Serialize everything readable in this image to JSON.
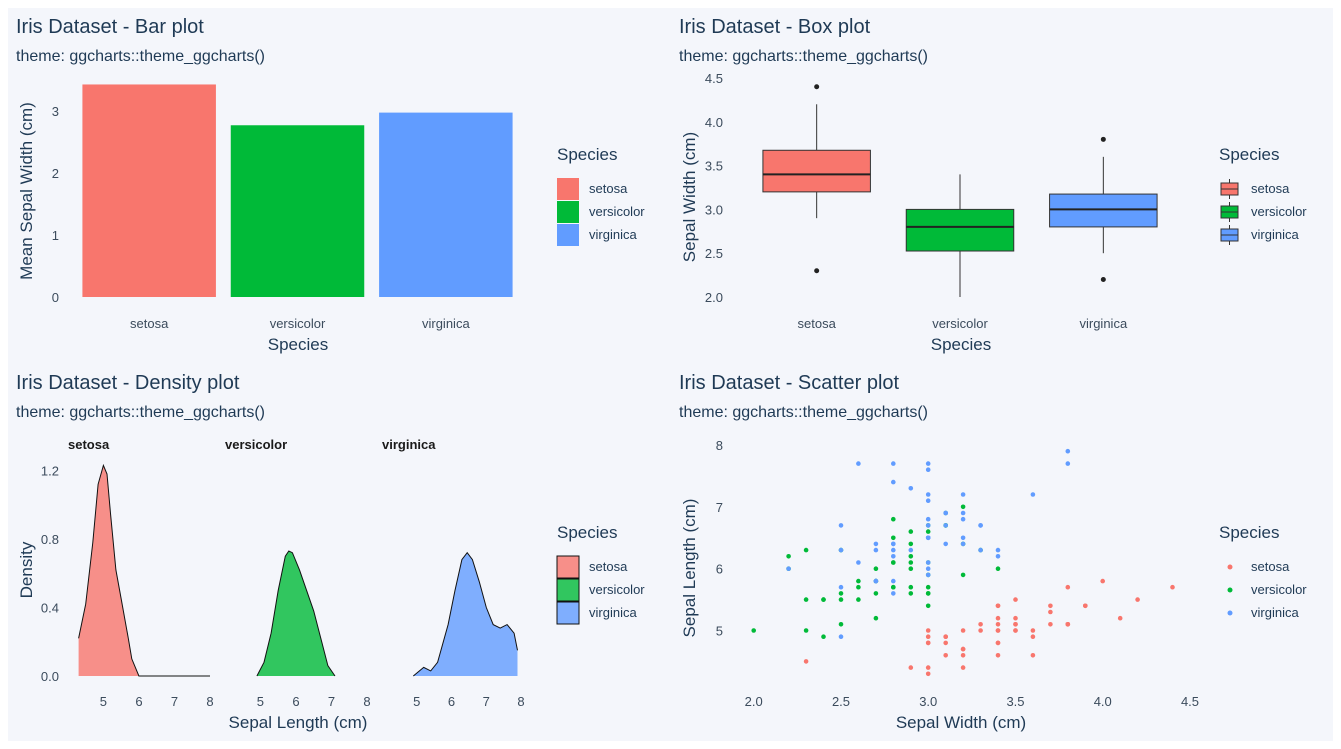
{
  "colors": {
    "background": "#ffffff",
    "panel": "#f4f6fb",
    "text": "#1f3a55",
    "setosa": "#f8766d",
    "versicolor": "#00ba38",
    "virginica": "#619cff"
  },
  "chart_data": [
    {
      "type": "bar",
      "title": "Iris Dataset - Bar plot",
      "subtitle": "theme: ggcharts::theme_ggcharts()",
      "xlabel": "Species",
      "ylabel": "Mean Sepal Width (cm)",
      "categories": [
        "setosa",
        "versicolor",
        "virginica"
      ],
      "values": [
        3.428,
        2.77,
        2.974
      ],
      "ylim": [
        0,
        3.5
      ],
      "yticks": [
        "0",
        "1",
        "2",
        "3"
      ],
      "legend": {
        "title": "Species",
        "items": [
          "setosa",
          "versicolor",
          "virginica"
        ],
        "position": "right"
      },
      "grid": false
    },
    {
      "type": "box",
      "title": "Iris Dataset - Box plot",
      "subtitle": "theme: ggcharts::theme_ggcharts()",
      "xlabel": "Species",
      "ylabel": "Sepal Width (cm)",
      "categories": [
        "setosa",
        "versicolor",
        "virginica"
      ],
      "boxes": [
        {
          "q1": 3.2,
          "median": 3.4,
          "q3": 3.675,
          "lower": 2.9,
          "upper": 4.2,
          "outliers": [
            4.4,
            2.3
          ]
        },
        {
          "q1": 2.525,
          "median": 2.8,
          "q3": 3.0,
          "lower": 2.0,
          "upper": 3.4,
          "outliers": []
        },
        {
          "q1": 2.8,
          "median": 3.0,
          "q3": 3.175,
          "lower": 2.5,
          "upper": 3.6,
          "outliers": [
            3.8,
            2.2
          ]
        }
      ],
      "ylim": [
        2.0,
        4.5
      ],
      "yticks": [
        "2.0",
        "2.5",
        "3.0",
        "3.5",
        "4.0",
        "4.5"
      ],
      "legend": {
        "title": "Species",
        "items": [
          "setosa",
          "versicolor",
          "virginica"
        ],
        "position": "right"
      },
      "grid": false
    },
    {
      "type": "area",
      "title": "Iris Dataset - Density plot",
      "subtitle": "theme: ggcharts::theme_ggcharts()",
      "xlabel": "Sepal Length (cm)",
      "ylabel": "Density",
      "ylim": [
        0,
        1.25
      ],
      "yticks": [
        "0.0",
        "0.4",
        "0.8",
        "1.2"
      ],
      "xticks": [
        "5",
        "6",
        "7",
        "8"
      ],
      "facets": [
        {
          "name": "setosa",
          "xlim": [
            4.2,
            8.0
          ],
          "x": [
            4.3,
            4.5,
            4.7,
            4.85,
            5.0,
            5.1,
            5.2,
            5.35,
            5.5,
            5.7,
            5.8,
            6.0,
            8.0
          ],
          "y": [
            0.22,
            0.42,
            0.78,
            1.12,
            1.23,
            1.18,
            0.95,
            0.62,
            0.45,
            0.22,
            0.1,
            0.0,
            0.0
          ]
        },
        {
          "name": "versicolor",
          "xlim": [
            4.2,
            8.0
          ],
          "x": [
            4.9,
            5.1,
            5.3,
            5.5,
            5.7,
            5.8,
            5.9,
            6.1,
            6.3,
            6.5,
            6.7,
            6.9,
            7.1
          ],
          "y": [
            0.0,
            0.08,
            0.25,
            0.5,
            0.7,
            0.73,
            0.72,
            0.62,
            0.5,
            0.38,
            0.22,
            0.06,
            0.0
          ]
        },
        {
          "name": "virginica",
          "xlim": [
            4.2,
            8.0
          ],
          "x": [
            4.9,
            5.2,
            5.4,
            5.6,
            5.9,
            6.1,
            6.3,
            6.45,
            6.6,
            6.8,
            7.0,
            7.2,
            7.4,
            7.6,
            7.8,
            7.9
          ],
          "y": [
            0.0,
            0.05,
            0.03,
            0.08,
            0.3,
            0.5,
            0.68,
            0.72,
            0.68,
            0.55,
            0.4,
            0.3,
            0.28,
            0.3,
            0.25,
            0.15
          ]
        }
      ],
      "legend": {
        "title": "Species",
        "items": [
          "setosa",
          "versicolor",
          "virginica"
        ],
        "position": "right"
      },
      "grid": false
    },
    {
      "type": "scatter",
      "title": "Iris Dataset - Scatter plot",
      "subtitle": "theme: ggcharts::theme_ggcharts()",
      "xlabel": "Sepal Width (cm)",
      "ylabel": "Sepal Length (cm)",
      "xlim": [
        1.95,
        4.5
      ],
      "ylim": [
        4.2,
        8.0
      ],
      "xticks": [
        "2.0",
        "2.5",
        "3.0",
        "3.5",
        "4.0",
        "4.5"
      ],
      "yticks": [
        "5",
        "6",
        "7",
        "8"
      ],
      "series": [
        {
          "name": "setosa",
          "points": [
            [
              3.5,
              5.1
            ],
            [
              3.0,
              4.9
            ],
            [
              3.2,
              4.7
            ],
            [
              3.1,
              4.6
            ],
            [
              3.6,
              5.0
            ],
            [
              3.9,
              5.4
            ],
            [
              3.4,
              4.6
            ],
            [
              3.4,
              5.0
            ],
            [
              2.9,
              4.4
            ],
            [
              3.1,
              4.9
            ],
            [
              3.7,
              5.4
            ],
            [
              3.4,
              4.8
            ],
            [
              3.0,
              4.8
            ],
            [
              3.0,
              4.3
            ],
            [
              4.0,
              5.8
            ],
            [
              4.4,
              5.7
            ],
            [
              3.9,
              5.4
            ],
            [
              3.5,
              5.1
            ],
            [
              3.8,
              5.7
            ],
            [
              3.8,
              5.1
            ],
            [
              3.4,
              5.4
            ],
            [
              3.7,
              5.1
            ],
            [
              3.6,
              4.6
            ],
            [
              3.3,
              5.1
            ],
            [
              3.4,
              4.8
            ],
            [
              3.0,
              5.0
            ],
            [
              3.4,
              5.0
            ],
            [
              3.5,
              5.2
            ],
            [
              3.4,
              5.2
            ],
            [
              3.2,
              4.7
            ],
            [
              3.1,
              4.8
            ],
            [
              3.4,
              5.4
            ],
            [
              4.1,
              5.2
            ],
            [
              4.2,
              5.5
            ],
            [
              3.1,
              4.9
            ],
            [
              3.2,
              5.0
            ],
            [
              3.5,
              5.5
            ],
            [
              3.6,
              4.9
            ],
            [
              3.0,
              4.4
            ],
            [
              3.4,
              5.1
            ],
            [
              3.5,
              5.0
            ],
            [
              2.3,
              4.5
            ],
            [
              3.2,
              4.4
            ],
            [
              3.5,
              5.0
            ],
            [
              3.8,
              5.1
            ],
            [
              3.0,
              4.8
            ],
            [
              3.8,
              5.1
            ],
            [
              3.2,
              4.6
            ],
            [
              3.7,
              5.3
            ],
            [
              3.3,
              5.0
            ]
          ]
        },
        {
          "name": "versicolor",
          "points": [
            [
              3.2,
              7.0
            ],
            [
              3.2,
              6.4
            ],
            [
              3.1,
              6.9
            ],
            [
              2.3,
              5.5
            ],
            [
              2.8,
              6.5
            ],
            [
              2.8,
              5.7
            ],
            [
              3.3,
              6.3
            ],
            [
              2.4,
              4.9
            ],
            [
              2.9,
              6.6
            ],
            [
              2.7,
              5.2
            ],
            [
              2.0,
              5.0
            ],
            [
              3.0,
              5.9
            ],
            [
              2.2,
              6.0
            ],
            [
              2.9,
              6.1
            ],
            [
              2.9,
              5.6
            ],
            [
              3.1,
              6.7
            ],
            [
              3.0,
              5.6
            ],
            [
              2.7,
              5.8
            ],
            [
              2.2,
              6.2
            ],
            [
              2.5,
              5.6
            ],
            [
              3.2,
              5.9
            ],
            [
              2.8,
              6.1
            ],
            [
              2.5,
              6.3
            ],
            [
              2.8,
              6.1
            ],
            [
              2.9,
              6.4
            ],
            [
              3.0,
              6.6
            ],
            [
              2.8,
              6.8
            ],
            [
              3.0,
              6.7
            ],
            [
              2.9,
              6.0
            ],
            [
              2.6,
              5.7
            ],
            [
              2.4,
              5.5
            ],
            [
              2.4,
              5.5
            ],
            [
              2.7,
              5.8
            ],
            [
              2.7,
              6.0
            ],
            [
              3.0,
              5.4
            ],
            [
              3.4,
              6.0
            ],
            [
              3.1,
              6.7
            ],
            [
              2.3,
              6.3
            ],
            [
              3.0,
              5.6
            ],
            [
              2.5,
              5.5
            ],
            [
              2.6,
              5.5
            ],
            [
              3.0,
              6.1
            ],
            [
              2.6,
              5.8
            ],
            [
              2.3,
              5.0
            ],
            [
              2.7,
              5.6
            ],
            [
              3.0,
              5.7
            ],
            [
              2.9,
              5.7
            ],
            [
              2.9,
              6.2
            ],
            [
              2.5,
              5.1
            ],
            [
              2.8,
              5.7
            ]
          ]
        },
        {
          "name": "virginica",
          "points": [
            [
              3.3,
              6.3
            ],
            [
              2.7,
              5.8
            ],
            [
              3.0,
              7.1
            ],
            [
              2.9,
              6.3
            ],
            [
              3.0,
              6.5
            ],
            [
              3.0,
              7.6
            ],
            [
              2.5,
              4.9
            ],
            [
              2.9,
              7.3
            ],
            [
              2.5,
              6.7
            ],
            [
              3.6,
              7.2
            ],
            [
              3.2,
              6.5
            ],
            [
              2.7,
              6.4
            ],
            [
              3.0,
              6.8
            ],
            [
              2.5,
              5.7
            ],
            [
              2.8,
              5.8
            ],
            [
              3.2,
              6.4
            ],
            [
              3.0,
              6.5
            ],
            [
              3.8,
              7.7
            ],
            [
              2.6,
              7.7
            ],
            [
              2.2,
              6.0
            ],
            [
              3.2,
              6.9
            ],
            [
              2.8,
              5.6
            ],
            [
              2.8,
              7.7
            ],
            [
              2.7,
              6.3
            ],
            [
              3.3,
              6.7
            ],
            [
              3.2,
              7.2
            ],
            [
              2.8,
              6.2
            ],
            [
              3.0,
              6.1
            ],
            [
              2.8,
              6.4
            ],
            [
              3.0,
              7.2
            ],
            [
              2.8,
              7.4
            ],
            [
              3.8,
              7.9
            ],
            [
              2.8,
              6.4
            ],
            [
              2.8,
              6.3
            ],
            [
              2.6,
              6.1
            ],
            [
              3.0,
              7.7
            ],
            [
              3.4,
              6.3
            ],
            [
              3.1,
              6.4
            ],
            [
              3.0,
              6.0
            ],
            [
              3.1,
              6.9
            ],
            [
              3.1,
              6.7
            ],
            [
              3.1,
              6.9
            ],
            [
              2.7,
              5.8
            ],
            [
              3.2,
              6.8
            ],
            [
              3.3,
              6.7
            ],
            [
              3.0,
              6.7
            ],
            [
              2.5,
              6.3
            ],
            [
              3.0,
              6.5
            ],
            [
              3.4,
              6.2
            ],
            [
              3.0,
              5.9
            ]
          ]
        }
      ],
      "legend": {
        "title": "Species",
        "items": [
          "setosa",
          "versicolor",
          "virginica"
        ],
        "position": "right"
      },
      "grid": false
    }
  ]
}
